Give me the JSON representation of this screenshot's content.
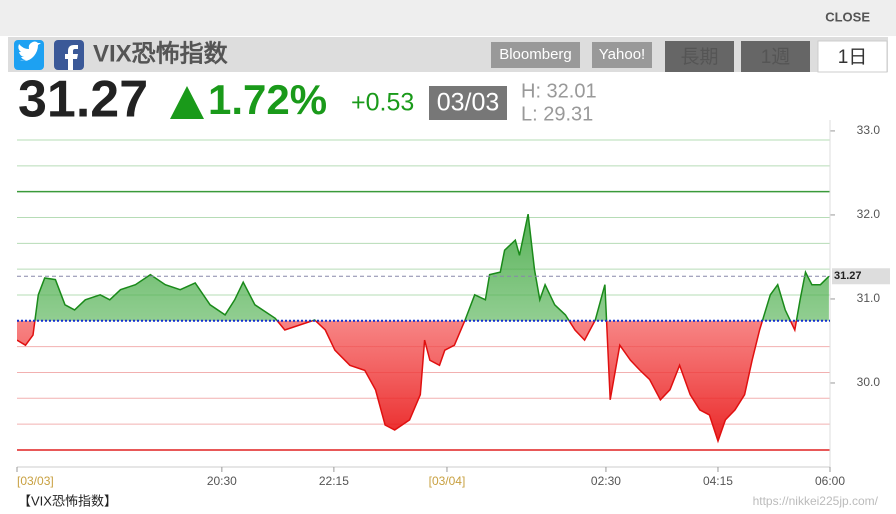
{
  "close": "CLOSE",
  "buttons": [
    "Bloomberg",
    "Yahoo!",
    "長期",
    "1週",
    "1日"
  ],
  "footer": {
    "caption": "【VIX恐怖指数】",
    "url": "https://nikkei225jp.com/"
  },
  "chart_data": {
    "type": "line",
    "title": "VIX恐怖指数",
    "price": 31.27,
    "change_pct": {
      "value": 1.72,
      "label": "1.72%"
    },
    "change": {
      "value": 0.53,
      "label": "+0.53"
    },
    "date": "03/03",
    "high": {
      "value": 32.01,
      "label": "H: 32.01"
    },
    "low": {
      "value": 29.31,
      "label": "L:  29.31"
    },
    "up_color": "#1a8a1a",
    "down_color": "#e01010",
    "x": [
      0,
      8,
      15,
      20,
      26,
      36,
      45,
      54,
      64,
      78,
      87,
      97,
      111,
      125,
      139,
      153,
      167,
      181,
      195,
      204,
      212,
      223,
      242,
      251,
      265,
      279,
      289,
      298,
      312,
      326,
      336,
      345,
      354,
      368,
      378,
      382,
      387,
      396,
      401,
      410,
      420,
      429,
      439,
      443,
      453,
      457,
      467,
      471,
      479,
      485,
      490,
      495,
      504,
      514,
      523,
      532,
      542,
      551,
      556,
      565,
      575,
      584,
      593,
      603,
      612,
      621,
      631,
      640,
      649,
      657,
      664,
      673,
      682,
      689,
      696,
      706,
      713,
      720,
      729,
      734,
      739,
      745,
      753,
      761
    ],
    "values": [
      30.51,
      30.45,
      30.57,
      31.05,
      31.25,
      31.23,
      30.93,
      30.87,
      30.99,
      31.05,
      30.99,
      31.11,
      31.17,
      31.29,
      31.17,
      31.11,
      31.19,
      30.93,
      30.81,
      30.99,
      31.2,
      30.93,
      30.77,
      30.63,
      30.69,
      30.75,
      30.63,
      30.39,
      30.21,
      30.15,
      29.92,
      29.5,
      29.44,
      29.56,
      29.86,
      30.51,
      30.27,
      30.21,
      30.39,
      30.45,
      30.75,
      31.05,
      30.99,
      31.29,
      31.32,
      31.58,
      31.7,
      31.52,
      32.01,
      31.35,
      30.99,
      31.17,
      30.93,
      30.81,
      30.63,
      30.51,
      30.75,
      31.17,
      29.8,
      30.45,
      30.27,
      30.15,
      30.04,
      29.8,
      29.92,
      30.21,
      29.86,
      29.68,
      29.62,
      29.31,
      29.56,
      29.68,
      29.86,
      30.27,
      30.63,
      31.05,
      31.17,
      30.87,
      30.63,
      30.99,
      31.32,
      31.17,
      31.17,
      31.27
    ],
    "xlim": [
      0,
      762
    ],
    "xticks": [
      {
        "value": 0,
        "label": "[03/03]"
      },
      {
        "value": 192,
        "label": "20:30"
      },
      {
        "value": 297,
        "label": "22:15"
      },
      {
        "value": 403,
        "label": "[03/04]"
      },
      {
        "value": 552,
        "label": "02:30"
      },
      {
        "value": 657,
        "label": "04:15"
      },
      {
        "value": 762,
        "label": "06:00"
      }
    ],
    "ylim": [
      29.0,
      33.13
    ],
    "yticks": [
      {
        "value": 30,
        "label": "30.0"
      },
      {
        "value": 31,
        "label": "31.0"
      },
      {
        "value": 32,
        "label": "32.0"
      },
      {
        "value": 33,
        "label": "33.0"
      }
    ]
  }
}
